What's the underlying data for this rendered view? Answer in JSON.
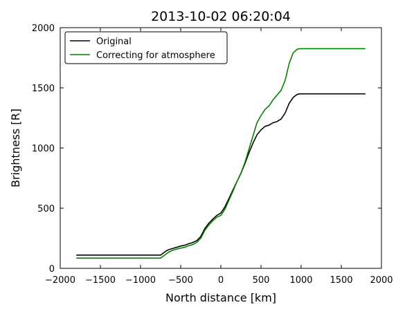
{
  "chart_data": {
    "type": "line",
    "title": "2013-10-02 06:20:04",
    "xlabel": "North distance [km]",
    "ylabel": "Brightness [R]",
    "xlim": [
      -2000,
      2000
    ],
    "ylim": [
      0,
      2000
    ],
    "xticks": [
      -2000,
      -1500,
      -1000,
      -500,
      0,
      500,
      1000,
      1500,
      2000
    ],
    "xtick_labels": [
      "−2000",
      "−1500",
      "−1000",
      "−500",
      "0",
      "500",
      "1000",
      "1500",
      "2000"
    ],
    "yticks": [
      0,
      500,
      1000,
      1500,
      2000
    ],
    "ytick_labels": [
      "0",
      "500",
      "1000",
      "1500",
      "2000"
    ],
    "grid": false,
    "legend_position": "top-left",
    "series": [
      {
        "name": "Original",
        "color": "#000000",
        "x": [
          -1800,
          -750,
          -720,
          -680,
          -650,
          -600,
          -550,
          -500,
          -450,
          -400,
          -350,
          -300,
          -250,
          -200,
          -150,
          -100,
          -50,
          0,
          50,
          100,
          150,
          200,
          250,
          300,
          350,
          400,
          450,
          500,
          550,
          600,
          650,
          700,
          750,
          800,
          850,
          900,
          950,
          980,
          1000,
          1800
        ],
        "y": [
          110,
          110,
          125,
          145,
          155,
          165,
          175,
          185,
          192,
          205,
          215,
          230,
          265,
          330,
          375,
          410,
          440,
          460,
          510,
          580,
          650,
          720,
          790,
          870,
          960,
          1040,
          1110,
          1150,
          1180,
          1190,
          1210,
          1220,
          1240,
          1290,
          1370,
          1420,
          1445,
          1450,
          1450,
          1450
        ]
      },
      {
        "name": "Correcting for atmosphere",
        "color": "#008000",
        "x": [
          -1800,
          -750,
          -720,
          -680,
          -650,
          -600,
          -550,
          -500,
          -450,
          -400,
          -350,
          -300,
          -250,
          -200,
          -150,
          -100,
          -50,
          0,
          50,
          100,
          150,
          200,
          250,
          300,
          350,
          400,
          450,
          500,
          550,
          600,
          650,
          700,
          750,
          800,
          850,
          900,
          950,
          980,
          1000,
          1800
        ],
        "y": [
          85,
          85,
          100,
          120,
          135,
          150,
          160,
          168,
          175,
          188,
          198,
          215,
          250,
          315,
          360,
          395,
          425,
          440,
          490,
          565,
          640,
          720,
          790,
          880,
          990,
          1100,
          1210,
          1270,
          1320,
          1350,
          1400,
          1440,
          1480,
          1560,
          1700,
          1790,
          1820,
          1825,
          1825,
          1825
        ]
      }
    ]
  }
}
